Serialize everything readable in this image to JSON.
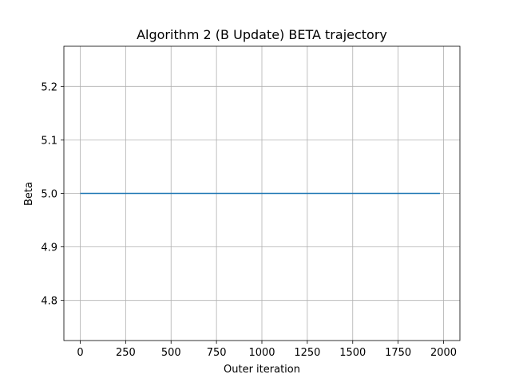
{
  "chart_data": {
    "type": "line",
    "title": "Algorithm 2 (B Update) BETA trajectory",
    "xlabel": "Outer iteration",
    "ylabel": "Beta",
    "xlim": [
      -90,
      2090
    ],
    "ylim": [
      4.725,
      5.275
    ],
    "xticks": [
      0,
      250,
      500,
      750,
      1000,
      1250,
      1500,
      1750,
      2000
    ],
    "xtick_labels": [
      "0",
      "250",
      "500",
      "750",
      "1000",
      "1250",
      "1500",
      "1750",
      "2000"
    ],
    "yticks": [
      4.8,
      4.9,
      5.0,
      5.1,
      5.2
    ],
    "ytick_labels": [
      "4.8",
      "4.9",
      "5.0",
      "5.1",
      "5.2"
    ],
    "grid": true,
    "legend": "none",
    "series": [
      {
        "color": "#1f77b4",
        "x": [
          0,
          1980
        ],
        "y": [
          5.0,
          5.0
        ]
      }
    ]
  }
}
